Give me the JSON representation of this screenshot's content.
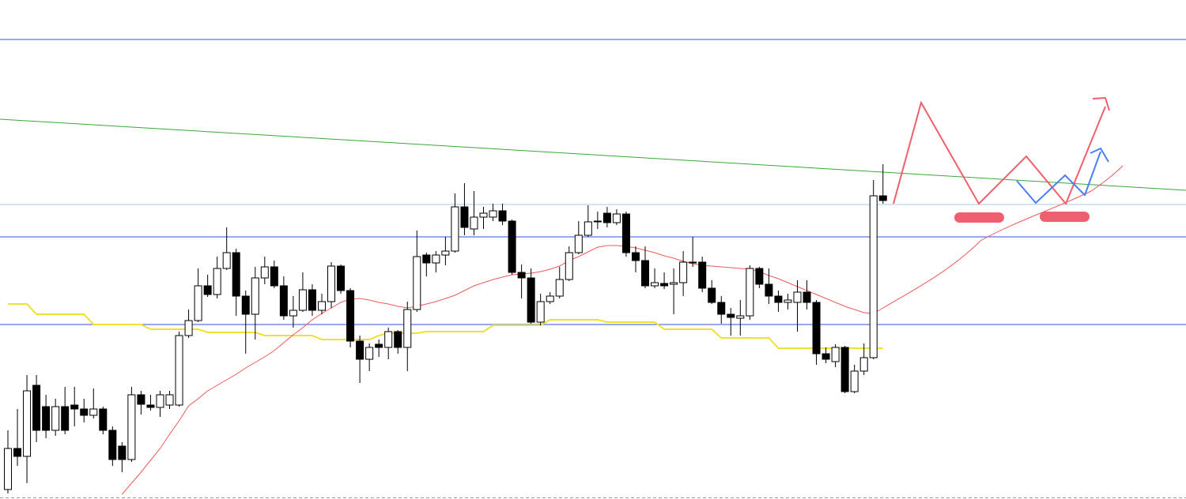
{
  "chart_data": {
    "type": "candlestick",
    "ylim": [
      0,
      632
    ],
    "up_color": "#ffffff",
    "down_color": "#000000",
    "open": [
      12,
      64,
      54,
      144,
      117,
      87,
      117,
      119,
      114,
      106,
      114,
      87,
      67,
      50,
      132,
      119,
      116,
      119,
      119,
      207,
      226,
      270,
      259,
      292,
      312,
      257,
      234,
      280,
      294,
      270,
      232,
      239,
      265,
      239,
      250,
      295,
      264,
      200,
      177,
      196,
      192,
      212,
      192,
      240,
      309,
      299,
      309,
      314,
      370,
      342,
      357,
      357,
      365,
      352,
      287,
      280,
      224,
      250,
      257,
      278,
      312,
      334,
      351,
      362,
      350,
      361,
      312,
      302,
      270,
      273,
      272,
      274,
      299,
      300,
      267,
      249,
      234,
      229,
      232,
      292,
      272,
      257,
      249,
      249,
      262,
      249,
      184,
      174,
      192,
      136,
      162,
      179,
      384
    ],
    "high": [
      87,
      114,
      157,
      157,
      132,
      127,
      142,
      142,
      127,
      140,
      117,
      92,
      72,
      142,
      137,
      132,
      137,
      137,
      212,
      240,
      292,
      284,
      307,
      344,
      317,
      264,
      294,
      307,
      302,
      282,
      257,
      287,
      272,
      260,
      300,
      297,
      267,
      207,
      197,
      202,
      217,
      214,
      250,
      340,
      312,
      314,
      332,
      387,
      400,
      390,
      370,
      374,
      374,
      354,
      297,
      292,
      260,
      262,
      294,
      320,
      352,
      372,
      364,
      370,
      367,
      364,
      320,
      320,
      292,
      287,
      292,
      314,
      332,
      307,
      277,
      257,
      242,
      252,
      296,
      294,
      292,
      264,
      260,
      277,
      277,
      252,
      192,
      196,
      194,
      170,
      197,
      404,
      424
    ],
    "low": [
      7,
      42,
      20,
      72,
      77,
      80,
      82,
      92,
      97,
      102,
      82,
      42,
      34,
      47,
      107,
      112,
      104,
      114,
      117,
      204,
      224,
      256,
      254,
      290,
      232,
      184,
      202,
      272,
      267,
      227,
      217,
      237,
      232,
      234,
      242,
      260,
      192,
      147,
      162,
      180,
      177,
      184,
      162,
      237,
      282,
      287,
      296,
      312,
      334,
      334,
      342,
      352,
      347,
      284,
      254,
      222,
      220,
      247,
      254,
      276,
      310,
      332,
      342,
      344,
      347,
      307,
      287,
      267,
      267,
      266,
      234,
      257,
      294,
      262,
      247,
      222,
      207,
      207,
      227,
      267,
      247,
      237,
      240,
      212,
      240,
      170,
      172,
      167,
      134,
      134,
      157,
      177,
      374
    ],
    "close": [
      64,
      54,
      137,
      87,
      87,
      117,
      87,
      114,
      106,
      114,
      87,
      50,
      50,
      132,
      120,
      116,
      132,
      132,
      207,
      226,
      270,
      259,
      292,
      312,
      257,
      234,
      280,
      294,
      270,
      232,
      239,
      265,
      239,
      250,
      295,
      264,
      200,
      177,
      192,
      192,
      212,
      192,
      240,
      307,
      299,
      309,
      314,
      370,
      344,
      357,
      362,
      365,
      352,
      287,
      280,
      224,
      250,
      257,
      278,
      312,
      334,
      351,
      352,
      350,
      361,
      312,
      302,
      270,
      274,
      270,
      274,
      300,
      300,
      267,
      249,
      234,
      230,
      232,
      292,
      272,
      257,
      249,
      252,
      262,
      249,
      184,
      177,
      192,
      136,
      162,
      179,
      384,
      378
    ],
    "series": [
      {
        "color": "#f0e030",
        "values": [
          247,
          247,
          247,
          234,
          234,
          234,
          234,
          234,
          234,
          221,
          221,
          221,
          221,
          221,
          221,
          215,
          215,
          215,
          215,
          215,
          215,
          211,
          211,
          211,
          211,
          211,
          211,
          207,
          207,
          207,
          207,
          207,
          207,
          202,
          202,
          202,
          202,
          202,
          202,
          207,
          210,
          210,
          210,
          210,
          212,
          212,
          212,
          212,
          212,
          212,
          212,
          220,
          220,
          220,
          220,
          220,
          220,
          227,
          227,
          227,
          227,
          227,
          227,
          224,
          224,
          224,
          224,
          224,
          224,
          215,
          215,
          215,
          215,
          215,
          215,
          204,
          204,
          204,
          204,
          204,
          204,
          191,
          191,
          191,
          191,
          191,
          191,
          191,
          191,
          191,
          191,
          191,
          191
        ]
      },
      {
        "color": "#f05a5a",
        "values": [
          null,
          null,
          null,
          null,
          null,
          null,
          null,
          null,
          null,
          null,
          null,
          null,
          6,
          20,
          34,
          49,
          64,
          82,
          99,
          118,
          127,
          137,
          144,
          151,
          158,
          166,
          173,
          180,
          188,
          198,
          208,
          217,
          227,
          235,
          242,
          249,
          253,
          254,
          252,
          249,
          247,
          244,
          242,
          244,
          247,
          250,
          254,
          258,
          264,
          270,
          274,
          278,
          281,
          284,
          285,
          286,
          288,
          291,
          295,
          302,
          307,
          313,
          319,
          321,
          321,
          320,
          318,
          315,
          312,
          308,
          305,
          301,
          298,
          296,
          295,
          294,
          293,
          292,
          291,
          288,
          283,
          279,
          274,
          269,
          264,
          259,
          254,
          249,
          244,
          240,
          236,
          235,
          242
        ]
      }
    ],
    "hlines": [
      {
        "value": 582,
        "color": "#2f55e0"
      },
      {
        "value": 373,
        "color": "#a8c8e8"
      },
      {
        "value": 332,
        "color": "#2f55e0"
      },
      {
        "value": 221,
        "color": "#2f55e0"
      }
    ],
    "trendline": {
      "values": [
        481,
        391
      ],
      "color": "#3aa63a"
    }
  }
}
